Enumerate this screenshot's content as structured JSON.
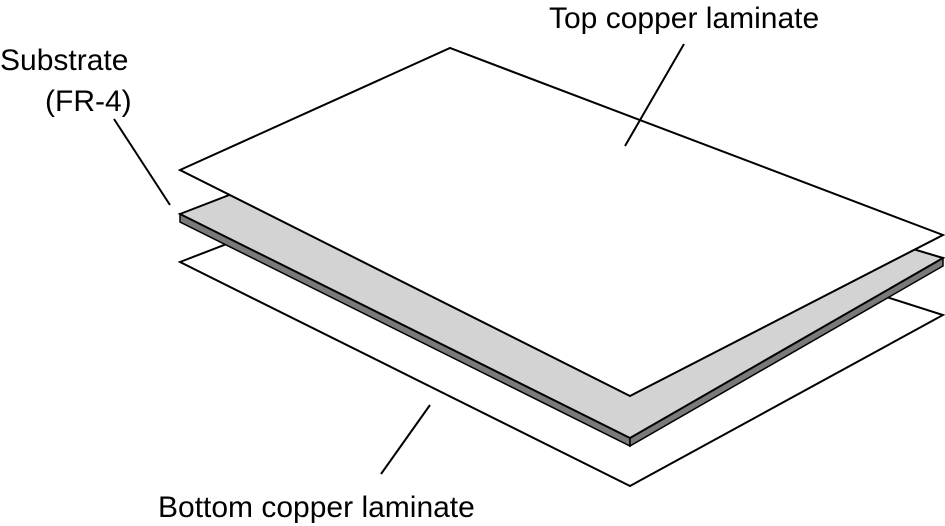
{
  "labels": {
    "top": "Top copper laminate",
    "substrate_line1": "Substrate",
    "substrate_line2": "(FR-4)",
    "bottom": "Bottom copper laminate"
  },
  "colors": {
    "substrate_fill": "#d3d3d3",
    "sheet_fill": "#ffffff",
    "stroke": "#000000"
  }
}
